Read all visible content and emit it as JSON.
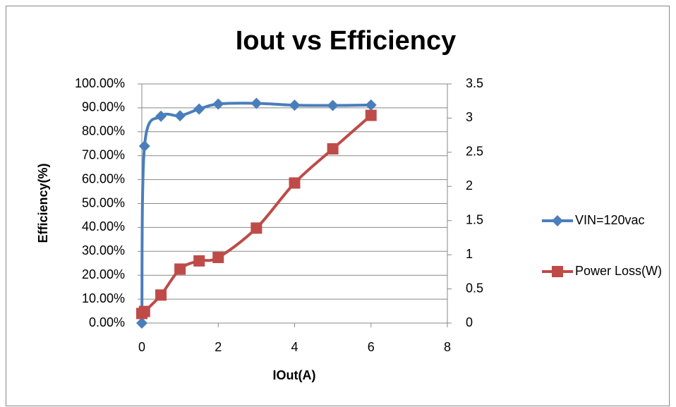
{
  "chart_data": {
    "type": "line",
    "title": "Iout vs Efficiency",
    "x_label": "IOut(A)",
    "y_label": "Efficiency(%)",
    "x": [
      0,
      0.07,
      0.5,
      1,
      1.5,
      2,
      3,
      4,
      5,
      6
    ],
    "xlim": [
      0,
      8
    ],
    "xticks": [
      0,
      2,
      4,
      6,
      8
    ],
    "ylim": [
      0,
      100
    ],
    "yticks": [
      {
        "value": 0,
        "label": "0.00%"
      },
      {
        "value": 10,
        "label": "10.00%"
      },
      {
        "value": 20,
        "label": "20.00%"
      },
      {
        "value": 30,
        "label": "30.00%"
      },
      {
        "value": 40,
        "label": "40.00%"
      },
      {
        "value": 50,
        "label": "50.00%"
      },
      {
        "value": 60,
        "label": "60.00%"
      },
      {
        "value": 70,
        "label": "70.00%"
      },
      {
        "value": 80,
        "label": "80.00%"
      },
      {
        "value": 90,
        "label": "90.00%"
      },
      {
        "value": 100,
        "label": "100.00%"
      }
    ],
    "y2lim": [
      0,
      3.5
    ],
    "y2ticks": [
      0,
      0.5,
      1,
      1.5,
      2,
      2.5,
      3,
      3.5
    ],
    "grid": true,
    "legend": "right",
    "series": [
      {
        "name": "VIN=120vac",
        "color": "#4a7ebb",
        "marker": "diamond",
        "values": [
          0,
          74,
          86.5,
          86.7,
          89.5,
          91.6,
          91.9,
          91.1,
          91.0,
          91.2
        ]
      },
      {
        "name": "Power Loss(W)",
        "color": "#be4b48",
        "marker": "square",
        "axis": "y2",
        "values": [
          0.14,
          0.17,
          0.41,
          0.79,
          0.91,
          0.96,
          1.39,
          2.05,
          2.55,
          3.04
        ]
      }
    ]
  }
}
